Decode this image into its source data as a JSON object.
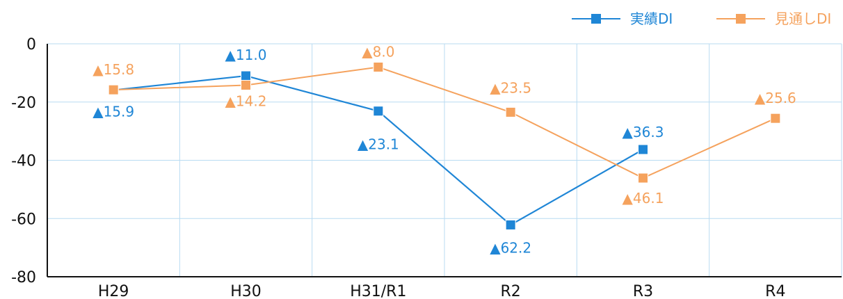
{
  "chart_data": {
    "type": "line",
    "categories": [
      "H29",
      "H30",
      "H31/R1",
      "R2",
      "R3",
      "R4"
    ],
    "series": [
      {
        "name": "実績DI",
        "values": [
          -15.9,
          -11.0,
          -23.1,
          -62.2,
          -36.3,
          null
        ],
        "labels": [
          "▲15.9",
          "▲11.0",
          "▲23.1",
          "▲62.2",
          "▲36.3",
          null
        ],
        "color": "#1f86d6"
      },
      {
        "name": "見通しDI",
        "values": [
          -15.8,
          -14.2,
          -8.0,
          -23.5,
          -46.1,
          -25.6
        ],
        "labels": [
          "▲15.8",
          "▲14.2",
          "▲8.0",
          "▲23.5",
          "▲46.1",
          "▲25.6"
        ],
        "color": "#f5a25d"
      }
    ],
    "yticks": [
      "0",
      "-20",
      "-40",
      "-60",
      "-80"
    ],
    "ylim": [
      -80,
      0
    ],
    "grid": true,
    "legend_position": "top-right",
    "title": "",
    "xlabel": "",
    "ylabel": ""
  }
}
